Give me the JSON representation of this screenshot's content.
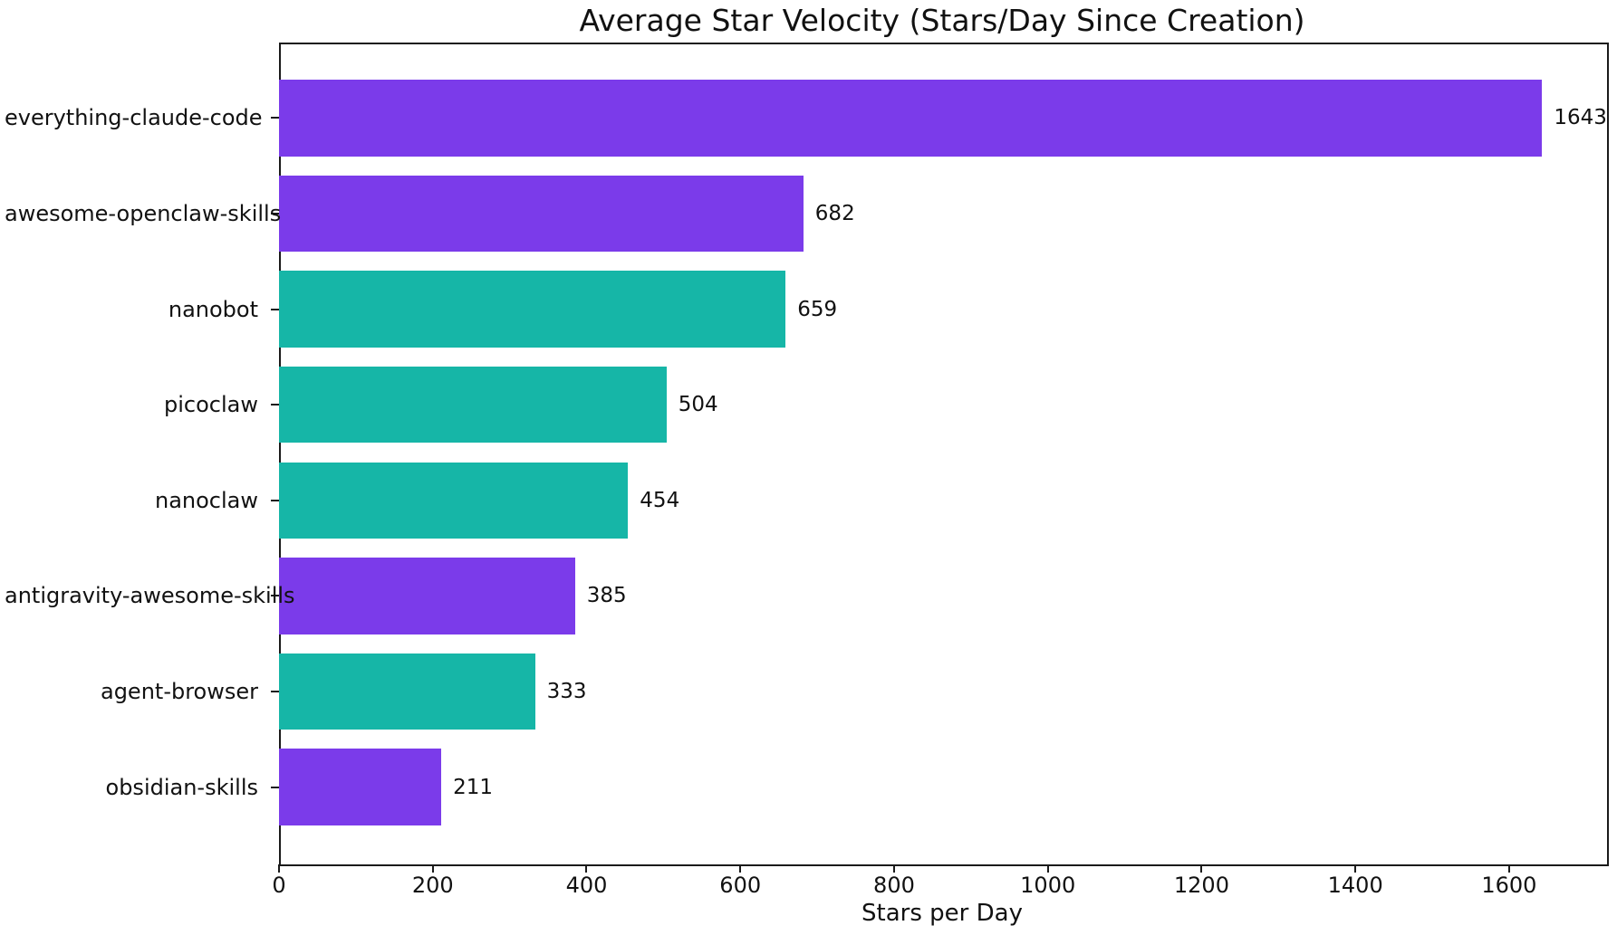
{
  "chart_data": {
    "type": "bar",
    "orientation": "horizontal",
    "title": "Average Star Velocity (Stars/Day Since Creation)",
    "xlabel": "Stars per Day",
    "ylabel": "",
    "categories": [
      "everything-claude-code",
      "awesome-openclaw-skills",
      "nanobot",
      "picoclaw",
      "nanoclaw",
      "antigravity-awesome-skills",
      "agent-browser",
      "obsidian-skills"
    ],
    "values": [
      1643,
      682,
      659,
      504,
      454,
      385,
      333,
      211
    ],
    "value_labels": [
      "1643",
      "682",
      "659",
      "504",
      "454",
      "385",
      "333",
      "211"
    ],
    "bar_colors": [
      "#7b3bea",
      "#7b3bea",
      "#16b6a7",
      "#16b6a7",
      "#16b6a7",
      "#7b3bea",
      "#16b6a7",
      "#7b3bea"
    ],
    "colors": {
      "purple": "#7b3bea",
      "teal": "#16b6a7",
      "spine": "#1a1a1a",
      "text": "#111111",
      "background": "#ffffff"
    },
    "xlim": [
      0,
      1725
    ],
    "x_ticks": [
      0,
      200,
      400,
      600,
      800,
      1000,
      1200,
      1400,
      1600
    ],
    "grid": false,
    "legend": null
  }
}
